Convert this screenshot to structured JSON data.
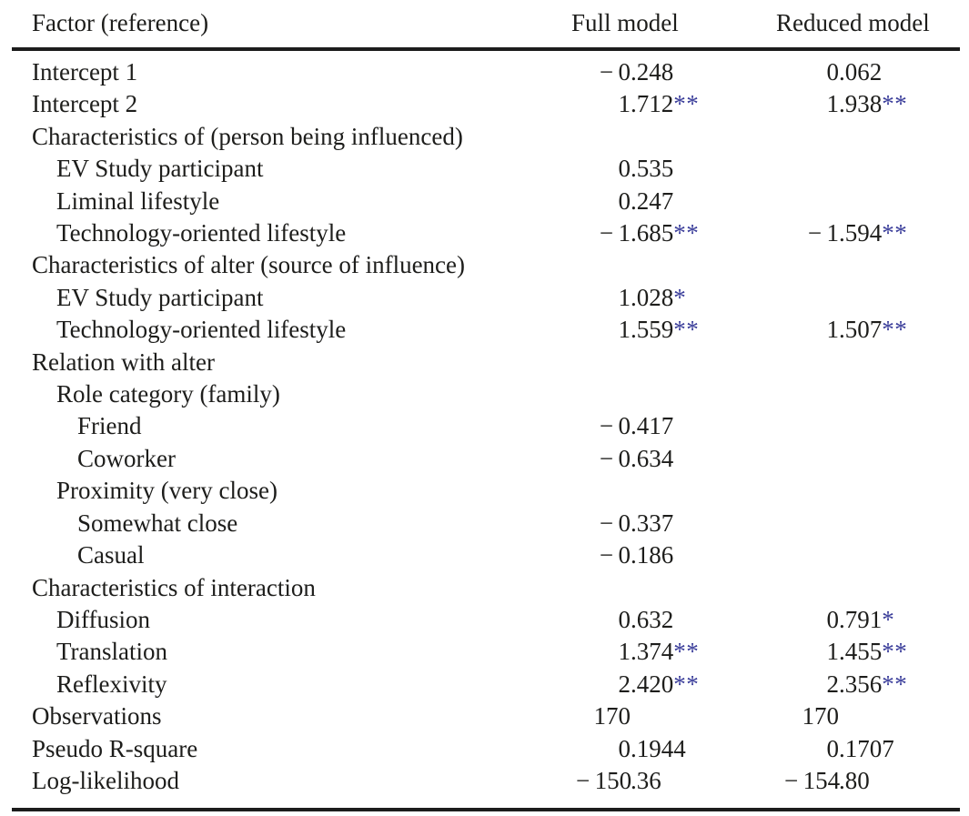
{
  "table": {
    "columns": [
      {
        "key": "factor",
        "label": "Factor (reference)"
      },
      {
        "key": "full",
        "label": "Full model"
      },
      {
        "key": "reduced",
        "label": "Reduced model"
      }
    ],
    "rows": [
      {
        "label": "Intercept 1",
        "indent": 0,
        "full": "−0.248",
        "full_stars": "",
        "reduced": "0.062",
        "reduced_stars": ""
      },
      {
        "label": "Intercept 2",
        "indent": 0,
        "full": "1.712",
        "full_stars": "**",
        "reduced": "1.938",
        "reduced_stars": "**"
      },
      {
        "label": "Characteristics of (person being influenced)",
        "indent": 0,
        "full": "",
        "full_stars": "",
        "reduced": "",
        "reduced_stars": ""
      },
      {
        "label": "EV Study participant",
        "indent": 1,
        "full": "0.535",
        "full_stars": "",
        "reduced": "",
        "reduced_stars": ""
      },
      {
        "label": "Liminal lifestyle",
        "indent": 1,
        "full": "0.247",
        "full_stars": "",
        "reduced": "",
        "reduced_stars": ""
      },
      {
        "label": "Technology-oriented lifestyle",
        "indent": 1,
        "full": "−1.685",
        "full_stars": "**",
        "reduced": "−1.594",
        "reduced_stars": "**"
      },
      {
        "label": "Characteristics of alter (source of influence)",
        "indent": 0,
        "full": "",
        "full_stars": "",
        "reduced": "",
        "reduced_stars": ""
      },
      {
        "label": "EV Study participant",
        "indent": 1,
        "full": "1.028",
        "full_stars": "*",
        "reduced": "",
        "reduced_stars": ""
      },
      {
        "label": "Technology-oriented lifestyle",
        "indent": 1,
        "full": "1.559",
        "full_stars": "**",
        "reduced": "1.507",
        "reduced_stars": "**"
      },
      {
        "label": "Relation with alter",
        "indent": 0,
        "full": "",
        "full_stars": "",
        "reduced": "",
        "reduced_stars": ""
      },
      {
        "label": "Role category (family)",
        "indent": 1,
        "full": "",
        "full_stars": "",
        "reduced": "",
        "reduced_stars": ""
      },
      {
        "label": "Friend",
        "indent": 2,
        "full": "−0.417",
        "full_stars": "",
        "reduced": "",
        "reduced_stars": ""
      },
      {
        "label": "Coworker",
        "indent": 2,
        "full": "−0.634",
        "full_stars": "",
        "reduced": "",
        "reduced_stars": ""
      },
      {
        "label": "Proximity (very close)",
        "indent": 1,
        "full": "",
        "full_stars": "",
        "reduced": "",
        "reduced_stars": ""
      },
      {
        "label": "Somewhat close",
        "indent": 2,
        "full": "−0.337",
        "full_stars": "",
        "reduced": "",
        "reduced_stars": ""
      },
      {
        "label": "Casual",
        "indent": 2,
        "full": "−0.186",
        "full_stars": "",
        "reduced": "",
        "reduced_stars": ""
      },
      {
        "label": "Characteristics of interaction",
        "indent": 0,
        "full": "",
        "full_stars": "",
        "reduced": "",
        "reduced_stars": ""
      },
      {
        "label": "Diffusion",
        "indent": 1,
        "full": "0.632",
        "full_stars": "",
        "reduced": "0.791",
        "reduced_stars": "*"
      },
      {
        "label": "Translation",
        "indent": 1,
        "full": "1.374",
        "full_stars": "**",
        "reduced": "1.455",
        "reduced_stars": "**"
      },
      {
        "label": "Reflexivity",
        "indent": 1,
        "full": "2.420",
        "full_stars": "**",
        "reduced": "2.356",
        "reduced_stars": "**"
      },
      {
        "label": "Observations",
        "indent": 0,
        "full": "170",
        "full_stars": "",
        "reduced": "170",
        "reduced_stars": ""
      },
      {
        "label": "Pseudo R-square",
        "indent": 0,
        "full": "0.1944",
        "full_stars": "",
        "reduced": "0.1707",
        "reduced_stars": ""
      },
      {
        "label": "Log-likelihood",
        "indent": 0,
        "full": "−150.36",
        "full_stars": "",
        "reduced": "−154.80",
        "reduced_stars": ""
      }
    ],
    "colors": {
      "text": "#1d1d1b",
      "rule": "#1c1c1c",
      "significance_star": "#3c3f9b"
    }
  }
}
